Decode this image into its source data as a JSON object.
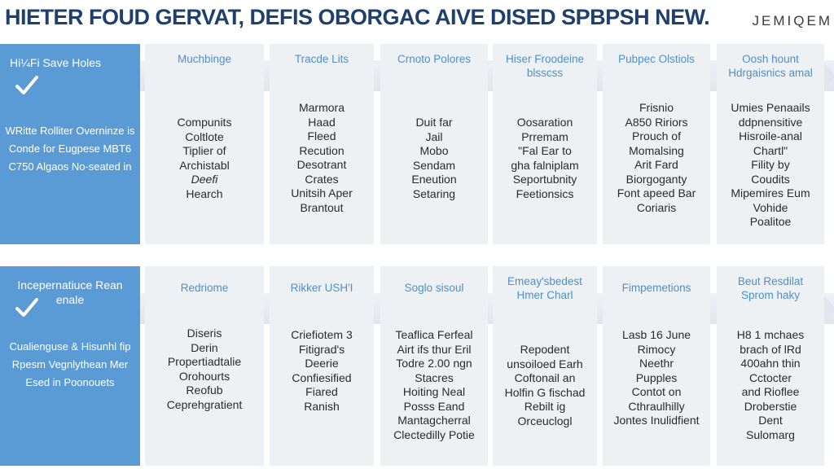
{
  "title": "HIETER FOUD GERVAT, DEFIS OBORGAC AIVE DISED SPBPSH NEW.",
  "brand": "JEMIQEM",
  "rows": [
    {
      "lead": {
        "heading": "Hi¼Fi Save Holes",
        "lines": [
          "WRitte Rolliter",
          "Overninze is Conde for",
          "Eugpese MBT6 C750",
          "Algaos No-seated in"
        ]
      },
      "columns": [
        {
          "heading": [
            "Muchbinge"
          ],
          "lines": [
            "Compunits",
            "Coltlote",
            "Tiplier of",
            "Archistabl",
            "Deefi",
            "Hearch"
          ]
        },
        {
          "heading": [
            "Tracde Lits"
          ],
          "lines": [
            "Marmora",
            "Haad",
            "Fleed",
            "Recution",
            "Desotrant",
            "Crates",
            "Unitsih Aper",
            "Brantout"
          ]
        },
        {
          "heading": [
            "Crnoto Polores"
          ],
          "lines": [
            "Duit far",
            "Jail",
            "Mobo",
            "Sendam",
            "Eneution",
            "Setaring"
          ]
        },
        {
          "heading": [
            "Hiser Froodeine",
            "blsscss"
          ],
          "lines": [
            "Oosaration",
            "Prremam",
            "\"Fal Ear to",
            "gha falniplam",
            "Seportubnity",
            "Feetionsics"
          ]
        },
        {
          "heading": [
            "Pubpec Olstiols"
          ],
          "lines": [
            "Frisnio",
            "A850 Ririors",
            "Prouch of",
            "Momalsing",
            "Arit Fard",
            "Biorgoganty",
            "Font apeed Bar",
            "Coriaris"
          ]
        },
        {
          "heading": [
            "Oosh hount",
            "Hdrgaisnics amal"
          ],
          "lines": [
            "Umies Penaails",
            "ddpnensitive",
            "Hisroile-anal",
            "Chartl\"",
            "Fility by",
            "Coudits",
            "Mipemires Eum",
            "Vohide",
            "Poalitoe"
          ]
        }
      ]
    },
    {
      "lead": {
        "heading": "Incepernatiuce Rean enale",
        "lines": [
          "Cualienguse &",
          "Hisunhl fip Rpesm",
          "Vegnlythean Mer",
          "Esed in Poonouets"
        ]
      },
      "columns": [
        {
          "heading": [
            "Redriome"
          ],
          "lines": [
            "Diseris",
            "Derin",
            "Propertiadtalie",
            "Orohourts",
            "Reofub",
            "Ceprehgratient"
          ]
        },
        {
          "heading": [
            "Rikker USH'I"
          ],
          "lines": [
            "Criefiotem 3",
            "Fitigrad's",
            "Deerie",
            "Confiesified",
            "Fiared",
            "Ranish"
          ]
        },
        {
          "heading": [
            "Soglo sisoul"
          ],
          "lines": [
            "Teaflica Ferfeal",
            "Airt ifs thur Eril",
            "Todre 2.00 ngn",
            "Stacres",
            "Hoiting Neal",
            "Posss Eand",
            "Mantagcherral",
            "Clectedilly Potie"
          ]
        },
        {
          "heading": [
            "Emeay'sbedest",
            "Hmer Charl"
          ],
          "lines": [
            "Repodent",
            "unsoiloed Earh",
            "Coftonail an",
            "Holfin G fischad",
            "Rebilt ig",
            "Orceuclogl"
          ]
        },
        {
          "heading": [
            "Fimpemetions"
          ],
          "lines": [
            "Lasb 16 June",
            "Rimocy",
            "Neethr",
            "Pupples",
            "Contot on",
            "Cthraulhilly",
            "Jontes Inulidfient"
          ]
        },
        {
          "heading": [
            "Beut Resdilat",
            "Sprom haky"
          ],
          "lines": [
            "H8 1 mchaes",
            "brach of lRd",
            "400ahn thin",
            "Cctocter",
            "and Rioflee",
            "Droberstie",
            "Dent",
            "Sulomarg"
          ]
        }
      ]
    }
  ]
}
